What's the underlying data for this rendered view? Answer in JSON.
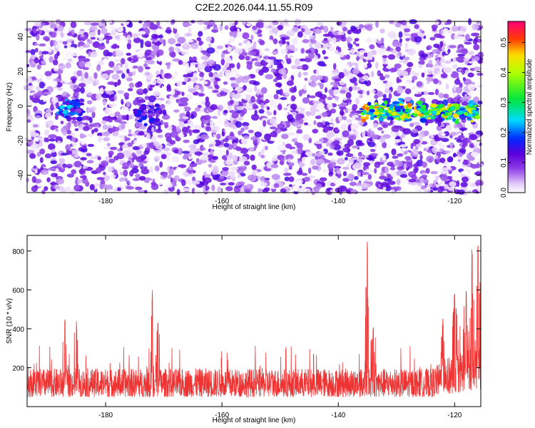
{
  "title": "C2E2.2026.044.11.55.R09",
  "chart_data": [
    {
      "type": "heatmap",
      "xlabel": "Height of straight line (km)",
      "ylabel": "Frequency (Hz)",
      "xlim": [
        -193.5,
        -115.5
      ],
      "ylim": [
        -50,
        49
      ],
      "xticks": [
        -180,
        -160,
        -140,
        -120
      ],
      "yticks": [
        -40,
        -20,
        0,
        20,
        40
      ],
      "colorbar": {
        "label": "Normalized spectral amplitude",
        "range": [
          0,
          0.57
        ],
        "ticks": [
          0,
          0.1,
          0.2,
          0.3,
          0.4,
          0.5
        ],
        "tick_labels": [
          "0.0",
          "0.1",
          "0.2",
          "0.3",
          "0.4",
          "0.5"
        ]
      },
      "bands": [
        {
          "x_range": [
            -136,
            -116
          ],
          "freq_center": -3,
          "freq_halfwidth": 7,
          "peak_amplitude": 0.5
        },
        {
          "x_range": [
            -188,
            -184
          ],
          "freq_center": -2,
          "freq_halfwidth": 9,
          "peak_amplitude": 0.25
        },
        {
          "x_range": [
            -175,
            -171
          ],
          "freq_center": -4,
          "freq_halfwidth": 8,
          "peak_amplitude": 0.18
        }
      ],
      "background_amplitude": 0.08
    },
    {
      "type": "line",
      "xlabel": "Height of straight line (km)",
      "ylabel": "SNR (10 * v/v)",
      "xlim": [
        -193.5,
        -115.5
      ],
      "ylim": [
        0,
        880
      ],
      "xticks": [
        -180,
        -160,
        -140,
        -120
      ],
      "yticks": [
        200,
        400,
        600,
        800
      ],
      "series": [
        {
          "color": "#ee3333",
          "baseline_mean": 140,
          "peaks": [
            {
              "x": -187,
              "y": 450
            },
            {
              "x": -185,
              "y": 440
            },
            {
              "x": -172,
              "y": 600
            },
            {
              "x": -171,
              "y": 460
            },
            {
              "x": -135,
              "y": 880
            },
            {
              "x": -134,
              "y": 420
            },
            {
              "x": -122,
              "y": 460
            },
            {
              "x": -120,
              "y": 580
            },
            {
              "x": -118,
              "y": 620
            },
            {
              "x": -117,
              "y": 830
            },
            {
              "x": -116,
              "y": 850
            }
          ]
        }
      ]
    }
  ],
  "colors": {
    "line": "#ee3333",
    "background": "#ffffff",
    "axes": "#000000"
  }
}
